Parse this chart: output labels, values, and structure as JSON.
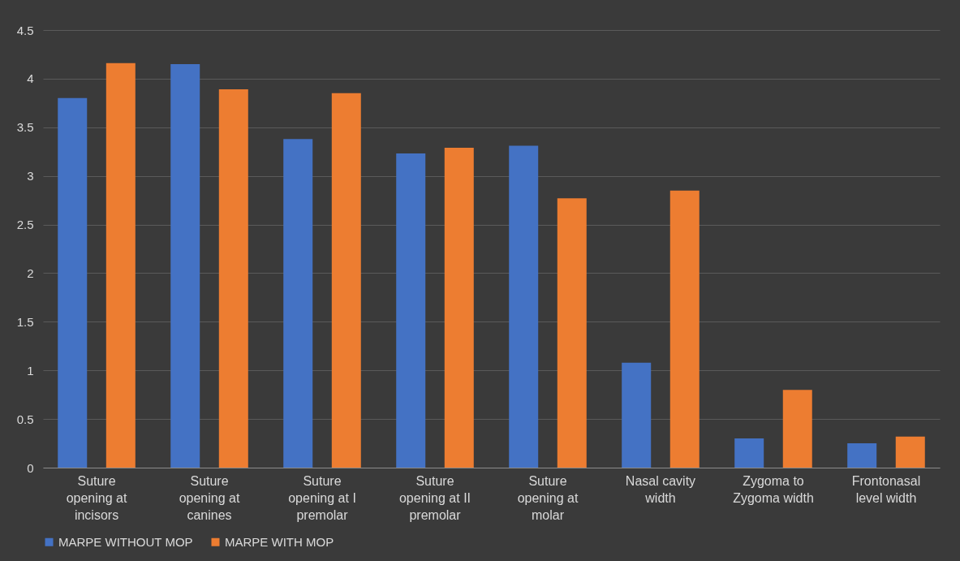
{
  "chart_data": {
    "type": "bar",
    "categories": [
      "Suture opening at incisors",
      "Suture opening at canines",
      "Suture opening at I premolar",
      "Suture opening at II premolar",
      "Suture opening at molar",
      "Nasal cavity width",
      "Zygoma to Zygoma width",
      "Frontonasal level width"
    ],
    "series": [
      {
        "name": "MARPE WITHOUT MOP",
        "color": "#4472c4",
        "values": [
          3.8,
          4.15,
          3.38,
          3.23,
          3.31,
          1.08,
          0.3,
          0.25
        ]
      },
      {
        "name": "MARPE WITH MOP",
        "color": "#ed7d31",
        "values": [
          4.16,
          3.89,
          3.85,
          3.29,
          2.77,
          2.85,
          0.8,
          0.32
        ]
      }
    ],
    "ylim": [
      0,
      4.5
    ],
    "yticks": [
      0,
      0.5,
      1,
      1.5,
      2,
      2.5,
      3,
      3.5,
      4,
      4.5
    ],
    "grid": "y",
    "legend": "bottom"
  }
}
